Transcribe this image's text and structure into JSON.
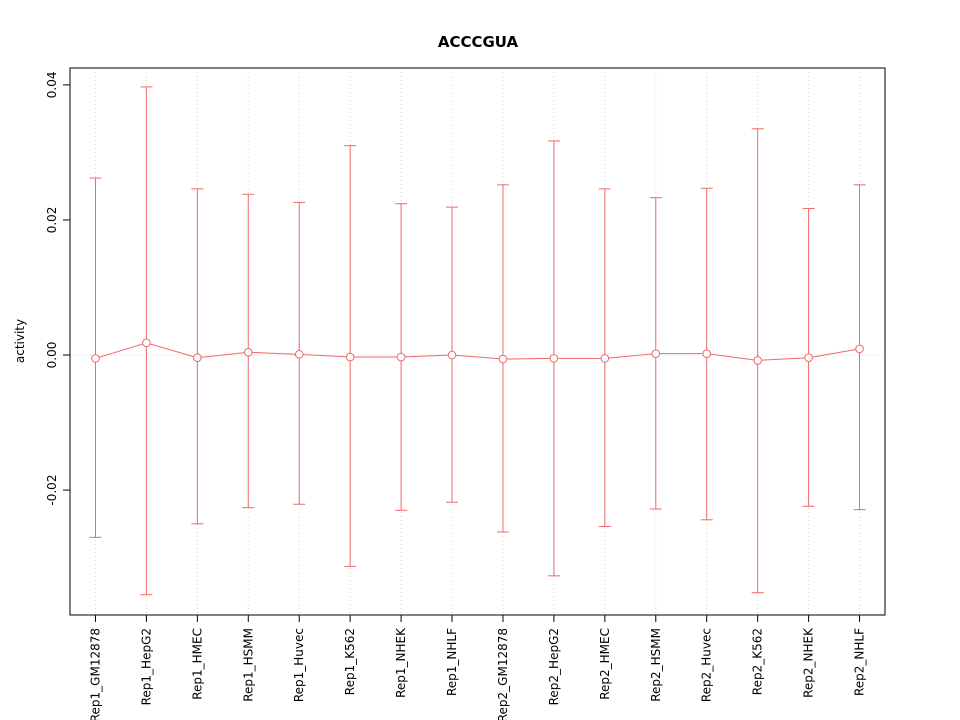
{
  "chart_data": {
    "type": "scatter",
    "title": "ACCCGUA",
    "xlabel": "",
    "ylabel": "activity",
    "ylim": [
      -0.0385,
      0.0425
    ],
    "ytick_values": [
      -0.02,
      0,
      0.02,
      0.04
    ],
    "ytick_labels": [
      "-0.02",
      "0.00",
      "0.02",
      "0.04"
    ],
    "grid": {
      "vertical": "dotted line at each category",
      "horizontal_at": 0,
      "style": "dotted"
    },
    "legend_position": "none",
    "categories": [
      "Rep1_GM12878",
      "Rep1_HepG2",
      "Rep1_HMEC",
      "Rep1_HSMM",
      "Rep1_Huvec",
      "Rep1_K562",
      "Rep1_NHEK",
      "Rep1_NHLF",
      "Rep2_GM12878",
      "Rep2_HepG2",
      "Rep2_HMEC",
      "Rep2_HSMM",
      "Rep2_Huvec",
      "Rep2_K562",
      "Rep2_NHEK",
      "Rep2_NHLF"
    ],
    "series": [
      {
        "name": "activity",
        "values": [
          -0.0005,
          0.0018,
          -0.0004,
          0.0004,
          0.0001,
          -0.0003,
          -0.0003,
          0.0,
          -0.0006,
          -0.0005,
          -0.0005,
          0.0002,
          0.0002,
          -0.0008,
          -0.0004,
          0.0009
        ],
        "upper": [
          0.0262,
          0.0397,
          0.0246,
          0.0238,
          0.0226,
          0.031,
          0.0224,
          0.0219,
          0.0252,
          0.0317,
          0.0246,
          0.0233,
          0.0247,
          0.0335,
          0.0217,
          0.0252
        ],
        "lower": [
          -0.027,
          -0.0355,
          -0.025,
          -0.0226,
          -0.0221,
          -0.0313,
          -0.023,
          -0.0218,
          -0.0262,
          -0.0327,
          -0.0254,
          -0.0228,
          -0.0244,
          -0.0352,
          -0.0224,
          -0.0229
        ]
      }
    ]
  },
  "colors": {
    "accent": "#ee6a6a",
    "grid": "#d6d6d6",
    "box": "#000000",
    "background": "#ffffff",
    "point_fill": "#ffffff"
  }
}
